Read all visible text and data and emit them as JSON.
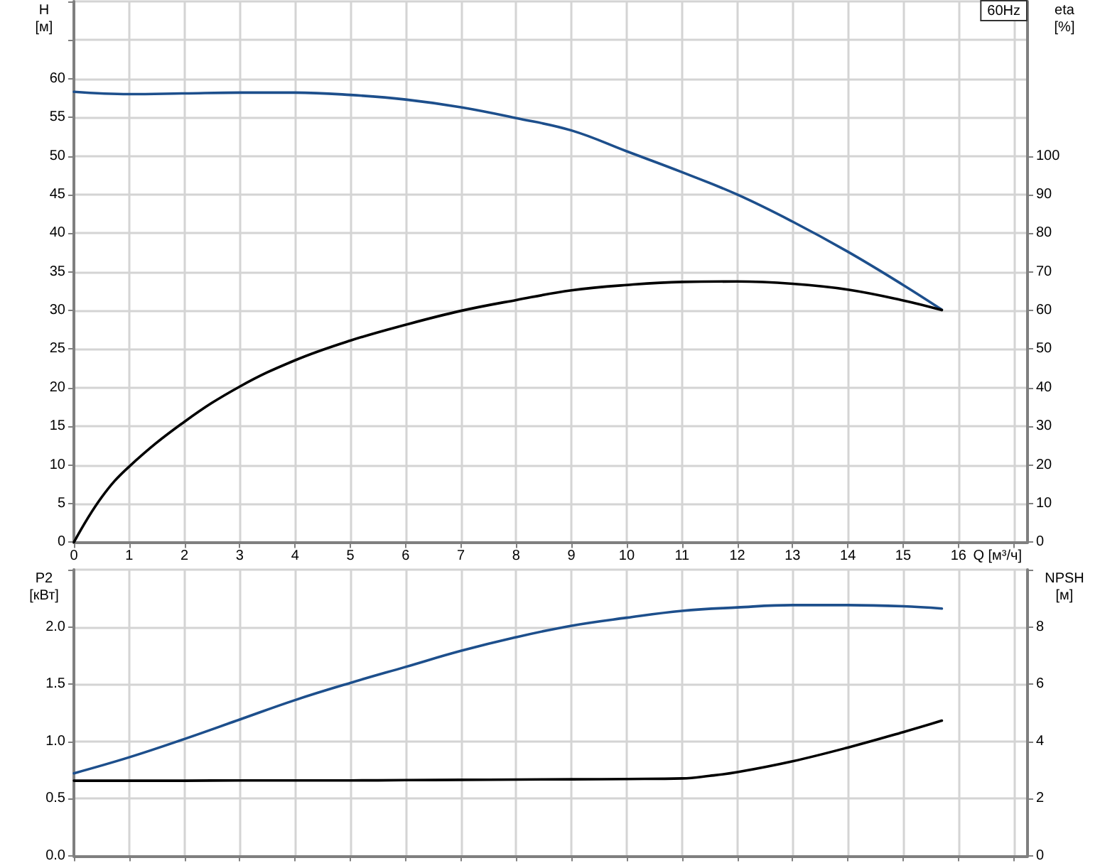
{
  "chart_data": [
    {
      "type": "line",
      "xlabel": "Q [м³/ч]",
      "ylabel": "H [м]",
      "y2label": "eta [%]",
      "annotations": [
        "60Hz"
      ],
      "x": [
        0,
        1,
        2,
        3,
        4,
        5,
        6,
        7,
        8,
        9,
        10,
        11,
        12,
        13,
        14,
        15,
        15.7
      ],
      "series": [
        {
          "color": "#1d4f8c",
          "values": [
            58.3,
            58.0,
            58.1,
            58.2,
            58.2,
            57.9,
            57.3,
            56.3,
            54.9,
            53.3,
            50.6,
            47.9,
            45.0,
            41.5,
            37.6,
            33.3,
            30.1
          ]
        },
        {
          "color": "#000000",
          "axis": "y2",
          "x": [
            0,
            0.5,
            1,
            2,
            3,
            4,
            5,
            6,
            7,
            8,
            9,
            10,
            11,
            12,
            13,
            14,
            15,
            15.7
          ],
          "values": [
            0,
            11.6,
            19.6,
            31.2,
            40.3,
            47.1,
            52.2,
            56.3,
            59.9,
            62.7,
            65.2,
            66.6,
            67.4,
            67.5,
            66.9,
            65.4,
            62.6,
            60.1
          ]
        }
      ],
      "xlim": [
        0,
        17.25
      ],
      "xticks": [
        0,
        1,
        2,
        3,
        4,
        5,
        6,
        7,
        8,
        9,
        10,
        11,
        12,
        13,
        14,
        15,
        16,
        {
          "value": 17,
          "label": null
        }
      ],
      "ylim": [
        0,
        70
      ],
      "yticks": [
        0,
        5,
        10,
        15,
        20,
        25,
        30,
        35,
        40,
        45,
        50,
        55,
        60,
        {
          "value": 65,
          "label": null
        },
        {
          "value": 70,
          "label": null
        }
      ],
      "y2lim": [
        0,
        140
      ],
      "y2ticks": [
        0,
        10,
        20,
        30,
        40,
        50,
        60,
        70,
        80,
        90,
        100
      ],
      "grid": true,
      "marker": "none"
    },
    {
      "type": "line",
      "ylabel": "P2 [кВт]",
      "y2label": "NPSH [м]",
      "x": [
        0,
        1,
        2,
        3,
        4,
        5,
        6,
        7,
        8,
        9,
        10,
        11,
        12,
        13,
        14,
        15,
        15.7
      ],
      "series": [
        {
          "color": "#1d4f8c",
          "values": [
            0.72,
            0.86,
            1.02,
            1.19,
            1.36,
            1.51,
            1.65,
            1.79,
            1.91,
            2.01,
            2.08,
            2.14,
            2.17,
            2.19,
            2.19,
            2.18,
            2.16
          ]
        },
        {
          "color": "#000000",
          "axis": "y2",
          "x": [
            0,
            1,
            2,
            3,
            4,
            5,
            6,
            7,
            8,
            9,
            10,
            11,
            11.5,
            12,
            13,
            14,
            15,
            15.7
          ],
          "values": [
            2.62,
            2.62,
            2.62,
            2.63,
            2.63,
            2.63,
            2.64,
            2.65,
            2.66,
            2.67,
            2.68,
            2.7,
            2.79,
            2.92,
            3.3,
            3.78,
            4.32,
            4.72
          ]
        }
      ],
      "xlim": [
        0,
        17.25
      ],
      "xticks": [
        0,
        1,
        2,
        3,
        4,
        5,
        6,
        7,
        8,
        9,
        10,
        11,
        12,
        13,
        14,
        15,
        16,
        {
          "value": 17,
          "label": null
        }
      ],
      "ylim": [
        0,
        2.5
      ],
      "yticks": [
        {
          "value": 0,
          "label": "0.0"
        },
        0.5,
        {
          "value": 1,
          "label": "1.0"
        },
        1.5,
        {
          "value": 2,
          "label": "2.0"
        },
        {
          "value": 2.5,
          "label": null
        }
      ],
      "y2lim": [
        0,
        10
      ],
      "y2ticks": [
        0,
        2,
        4,
        6,
        8,
        {
          "value": 10,
          "label": null
        }
      ],
      "tick_labels": "y",
      "grid": true,
      "marker": "none"
    }
  ]
}
